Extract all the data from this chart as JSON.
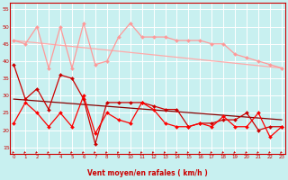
{
  "x": [
    0,
    1,
    2,
    3,
    4,
    5,
    6,
    7,
    8,
    9,
    10,
    11,
    12,
    13,
    14,
    15,
    16,
    17,
    18,
    19,
    20,
    21,
    22,
    23
  ],
  "line1": [
    46,
    45,
    50,
    38,
    50,
    38,
    51,
    39,
    40,
    47,
    51,
    47,
    47,
    47,
    46,
    46,
    46,
    45,
    45,
    42,
    41,
    40,
    39,
    38
  ],
  "line2": [
    39,
    29,
    32,
    26,
    36,
    35,
    29,
    16,
    28,
    28,
    28,
    28,
    27,
    26,
    26,
    21,
    22,
    22,
    23,
    23,
    25,
    20,
    21,
    21
  ],
  "line3": [
    22,
    28,
    25,
    21,
    25,
    21,
    30,
    19,
    25,
    23,
    22,
    28,
    26,
    22,
    21,
    21,
    22,
    21,
    24,
    21,
    21,
    25,
    18,
    21
  ],
  "trend1_x": [
    0,
    23
  ],
  "trend1_y": [
    46,
    38
  ],
  "trend2_x": [
    0,
    23
  ],
  "trend2_y": [
    29,
    23
  ],
  "bg_color": "#c8f0f0",
  "grid_color": "#ffffff",
  "line1_color": "#ff9999",
  "line2_color": "#cc0000",
  "line3_color": "#ff0000",
  "trend1_color": "#ffaaaa",
  "trend2_color": "#880000",
  "xlabel": "Vent moyen/en rafales ( km/h )",
  "ylim": [
    13,
    57
  ],
  "yticks": [
    15,
    20,
    25,
    30,
    35,
    40,
    45,
    50,
    55
  ],
  "xticks": [
    0,
    1,
    2,
    3,
    4,
    5,
    6,
    7,
    8,
    9,
    10,
    11,
    12,
    13,
    14,
    15,
    16,
    17,
    18,
    19,
    20,
    21,
    22,
    23
  ],
  "marker_size": 2.0,
  "linewidth": 0.9
}
